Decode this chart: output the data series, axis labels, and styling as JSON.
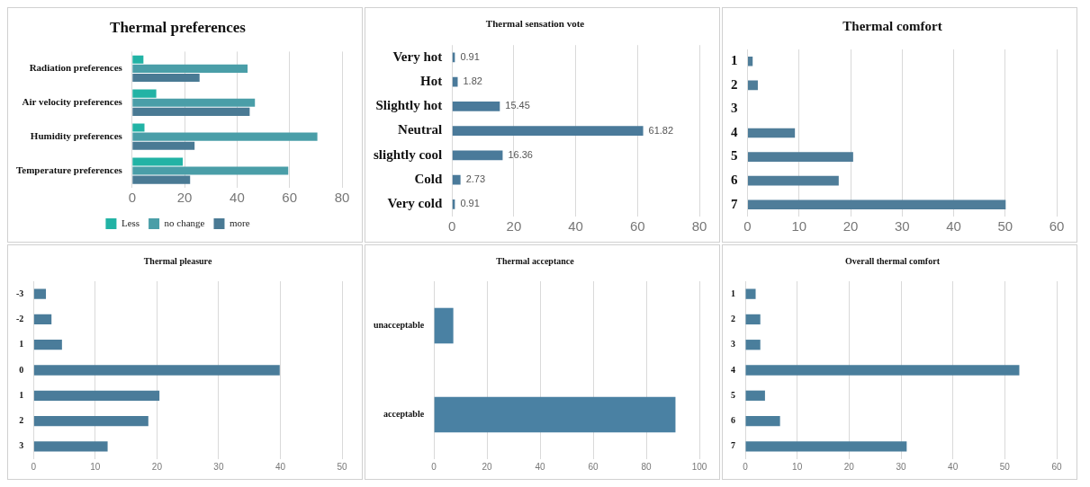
{
  "chart_data": [
    {
      "type": "bar",
      "orientation": "horizontal",
      "title": "Thermal preferences",
      "categories": [
        "Radiation preferences",
        "Air velocity preferences",
        "Humidity preferences",
        "Temperature preferences"
      ],
      "series": [
        {
          "name": "Less",
          "color": "#22b3a5",
          "values": [
            4.3,
            9.2,
            4.7,
            19.3
          ]
        },
        {
          "name": "no change",
          "color": "#4a9ea8",
          "values": [
            44,
            46.8,
            70.6,
            59.5
          ]
        },
        {
          "name": "more",
          "color": "#4a7a94",
          "values": [
            25.7,
            44.8,
            23.8,
            22.1
          ]
        }
      ],
      "xlim": [
        0,
        80
      ],
      "xticks": [
        0,
        20,
        40,
        60,
        80
      ],
      "grid": "x",
      "legend": "bottom"
    },
    {
      "type": "bar",
      "orientation": "horizontal",
      "title": "Thermal sensation vote",
      "categories": [
        "Very hot",
        "Hot",
        "Slightly hot",
        "Neutral",
        "slightly cool",
        "Cold",
        "Very cold"
      ],
      "values": [
        0.91,
        1.82,
        15.45,
        61.82,
        16.36,
        2.73,
        0.91
      ],
      "color": "#4a7a9a",
      "xlim": [
        0,
        80
      ],
      "xticks": [
        0,
        20,
        40,
        60,
        80
      ],
      "grid": "x",
      "data_labels": true
    },
    {
      "type": "bar",
      "orientation": "horizontal",
      "title": "Thermal comfort",
      "categories": [
        "1",
        "2",
        "3",
        "4",
        "5",
        "6",
        "7"
      ],
      "values": [
        1,
        2,
        0,
        9.2,
        20.5,
        17.7,
        50.1
      ],
      "color": "#4f7d99",
      "xlim": [
        0,
        60
      ],
      "xticks": [
        0,
        10,
        20,
        30,
        40,
        50,
        60
      ],
      "grid": "x"
    },
    {
      "type": "bar",
      "orientation": "horizontal",
      "title": "Thermal pleasure",
      "categories": [
        "-3",
        "-2",
        "1",
        "0",
        "1",
        "2",
        "3"
      ],
      "values": [
        2,
        2.9,
        4.6,
        39.9,
        20.4,
        18.6,
        12
      ],
      "color": "#4a7c9a",
      "xlim": [
        0,
        50
      ],
      "xticks": [
        0,
        10,
        20,
        30,
        40,
        50
      ],
      "grid": "x"
    },
    {
      "type": "bar",
      "orientation": "horizontal",
      "title": "Thermal acceptance",
      "categories": [
        "unacceptable",
        "acceptable"
      ],
      "values": [
        7.3,
        91
      ],
      "color": "#4a81a3",
      "xlim": [
        0,
        100
      ],
      "xticks": [
        0,
        20,
        40,
        60,
        80,
        100
      ],
      "grid": "x"
    },
    {
      "type": "bar",
      "orientation": "horizontal",
      "title": "Overall thermal comfort",
      "categories": [
        "1",
        "2",
        "3",
        "4",
        "5",
        "6",
        "7"
      ],
      "values": [
        2,
        2.9,
        2.9,
        52.8,
        3.8,
        6.7,
        31.1
      ],
      "color": "#4a7e9c",
      "xlim": [
        0,
        60
      ],
      "xticks": [
        0,
        10,
        20,
        30,
        40,
        50,
        60
      ],
      "grid": "x"
    }
  ]
}
